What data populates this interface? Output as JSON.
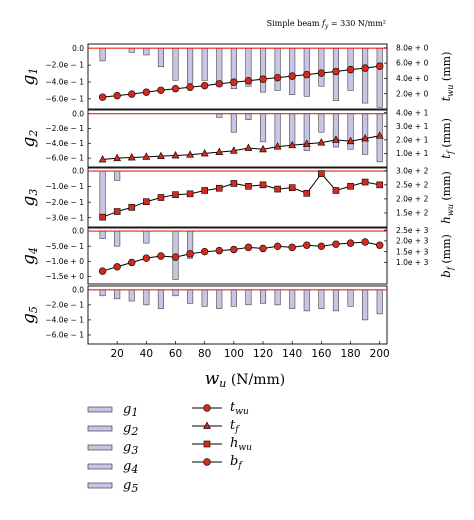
{
  "chart_data": {
    "type": "bar",
    "note": "Simple beam f_y = 330 N/mm²",
    "xlabel": "w_u (N/mm)",
    "x": [
      10,
      20,
      30,
      40,
      50,
      60,
      70,
      80,
      90,
      100,
      110,
      120,
      130,
      140,
      150,
      160,
      170,
      180,
      190,
      200
    ],
    "xticks": [
      20,
      40,
      60,
      80,
      100,
      120,
      140,
      160,
      180,
      200
    ],
    "xlim": [
      0,
      205
    ],
    "panels": [
      {
        "bar_series": "g1",
        "bar_ticks": [
          "0.0",
          "−2.0e − 1",
          "−4.0e − 1",
          "−6.0e − 1"
        ],
        "bar_tick_values": [
          0,
          -0.2,
          -0.4,
          -0.6
        ],
        "bar_ylim": [
          -0.72,
          0.05
        ],
        "bars": [
          -0.15,
          0,
          -0.05,
          -0.08,
          -0.22,
          -0.38,
          -0.42,
          -0.38,
          -0.45,
          -0.48,
          -0.45,
          -0.52,
          -0.5,
          -0.55,
          -0.57,
          -0.45,
          -0.62,
          -0.5,
          -0.65,
          -0.7
        ],
        "line_series": "t_wu",
        "line_label": "t",
        "line_sub": "wu",
        "line_unit": "(mm)",
        "marker": "circle",
        "line_ticks": [
          "8.0e + 0",
          "6.0e + 0",
          "4.0e + 0",
          "2.0e + 0"
        ],
        "line_tick_values": [
          8,
          6,
          4,
          2
        ],
        "line_ylim": [
          0,
          8.5
        ],
        "line": [
          1.55,
          1.75,
          1.95,
          2.2,
          2.45,
          2.65,
          2.85,
          3.05,
          3.3,
          3.5,
          3.7,
          3.9,
          4.1,
          4.3,
          4.5,
          4.7,
          4.9,
          5.15,
          5.35,
          5.6
        ]
      },
      {
        "bar_series": "g2",
        "bar_ticks": [
          "0.0",
          "−2.0e − 1",
          "−4.0e − 1",
          "−6.0e − 1"
        ],
        "bar_tick_values": [
          0,
          -0.2,
          -0.4,
          -0.6
        ],
        "bar_ylim": [
          -0.72,
          0.05
        ],
        "bars": [
          0,
          0,
          0,
          0,
          0,
          0,
          0,
          0,
          -0.05,
          -0.25,
          -0.08,
          -0.38,
          -0.48,
          -0.42,
          -0.5,
          -0.25,
          -0.45,
          -0.48,
          -0.55,
          -0.65
        ],
        "line_series": "t_f",
        "line_label": "t",
        "line_sub": "f",
        "line_unit": "(mm)",
        "marker": "triangle",
        "line_ticks": [
          "4.0e + 1",
          "3.0e + 1",
          "2.0e + 1",
          "1.0e + 1"
        ],
        "line_tick_values": [
          40,
          30,
          20,
          10
        ],
        "line_ylim": [
          0,
          42
        ],
        "line": [
          5.5,
          6.5,
          7,
          7.5,
          8,
          8.5,
          9,
          10,
          11,
          12,
          14,
          13,
          15,
          16,
          17,
          18,
          20,
          19,
          21,
          23
        ]
      },
      {
        "bar_series": "g3",
        "bar_ticks": [
          "0.0",
          "−1.0e − 1",
          "−2.0e − 1",
          "−3.0e − 1"
        ],
        "bar_tick_values": [
          0,
          -0.1,
          -0.2,
          -0.3
        ],
        "bar_ylim": [
          -0.36,
          0.02
        ],
        "bars": [
          -0.3,
          -0.06,
          0,
          0,
          0,
          0,
          0,
          0,
          0,
          0,
          0,
          0,
          0,
          0,
          0,
          0,
          0,
          0,
          0,
          0
        ],
        "line_series": "h_wu",
        "line_label": "h",
        "line_sub": "wu",
        "line_unit": "(mm)",
        "marker": "square",
        "line_ticks": [
          "3.0e + 2",
          "2.5e + 2",
          "2.0e + 2",
          "1.5e + 2"
        ],
        "line_tick_values": [
          300,
          250,
          200,
          150
        ],
        "line_ylim": [
          100,
          310
        ],
        "line": [
          135,
          155,
          170,
          190,
          205,
          215,
          218,
          230,
          238,
          255,
          245,
          250,
          235,
          240,
          220,
          290,
          230,
          245,
          260,
          250
        ]
      },
      {
        "bar_series": "g4",
        "bar_ticks": [
          "0.0",
          "−5.0e − 1",
          "−1.0e + 0",
          "−1.5e + 0"
        ],
        "bar_tick_values": [
          0,
          -0.5,
          -1.0,
          -1.5
        ],
        "bar_ylim": [
          -1.75,
          0.1
        ],
        "bars": [
          -0.25,
          -0.5,
          0,
          -0.4,
          0,
          -1.6,
          -0.9,
          0,
          0,
          0,
          0,
          0,
          0,
          0,
          0,
          0,
          0,
          0,
          0,
          0
        ],
        "line_series": "b_f",
        "line_label": "b",
        "line_sub": "f",
        "line_unit": "(mm)",
        "marker": "circle",
        "line_ticks": [
          "2.5e + 3",
          "2.0e + 3",
          "1.5e + 3",
          "1.0e + 3"
        ],
        "line_tick_values": [
          2500,
          2000,
          1500,
          1000
        ],
        "line_ylim": [
          0,
          2600
        ],
        "line": [
          600,
          800,
          1000,
          1200,
          1300,
          1250,
          1400,
          1500,
          1550,
          1600,
          1700,
          1650,
          1750,
          1700,
          1800,
          1750,
          1850,
          1900,
          1950,
          1800
        ]
      },
      {
        "bar_series": "g5",
        "bar_ticks": [
          "0.0",
          "−2.0e − 1",
          "−4.0e − 1",
          "−6.0e − 1"
        ],
        "bar_tick_values": [
          0,
          -0.2,
          -0.4,
          -0.6
        ],
        "bar_ylim": [
          -0.72,
          0.05
        ],
        "bars": [
          -0.08,
          -0.12,
          -0.15,
          -0.2,
          -0.25,
          -0.08,
          -0.18,
          -0.22,
          -0.25,
          -0.22,
          -0.2,
          -0.18,
          -0.2,
          -0.25,
          -0.28,
          -0.25,
          -0.28,
          -0.22,
          -0.4,
          -0.32
        ]
      }
    ],
    "legend": {
      "bars": [
        {
          "label": "g",
          "sub": "1"
        },
        {
          "label": "g",
          "sub": "2"
        },
        {
          "label": "g",
          "sub": "3"
        },
        {
          "label": "g",
          "sub": "4"
        },
        {
          "label": "g",
          "sub": "5"
        }
      ],
      "lines": [
        {
          "label": "t",
          "sub": "wu",
          "marker": "circle"
        },
        {
          "label": "t",
          "sub": "f",
          "marker": "triangle"
        },
        {
          "label": "h",
          "sub": "wu",
          "marker": "square"
        },
        {
          "label": "b",
          "sub": "f",
          "marker": "circle"
        }
      ]
    },
    "colors": {
      "bar_fill": "#c8c4e4",
      "bar_stroke": "#444444",
      "zero_line": "#e8231f",
      "marker": "#d42a1e",
      "line": "#000000"
    }
  }
}
